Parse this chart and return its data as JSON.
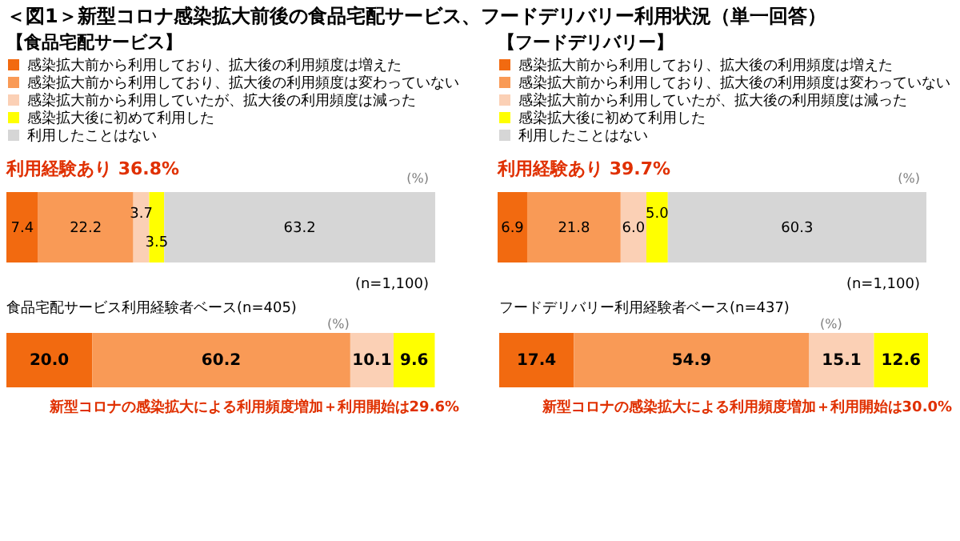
{
  "chart_data": [
    {
      "type": "bar",
      "orientation": "horizontal",
      "stacked": true,
      "title": "＜図1＞新型コロナ感染拡大前後の食品宅配サービス、フードデリバリー利用状況（単一回答）",
      "subtitle": "【食品宅配サービス】",
      "categories": [
        null
      ],
      "xlim": [
        0,
        100
      ],
      "tick_labels": false,
      "legend": "top",
      "series": [
        {
          "name": "感染拡大前から利用しており、拡大後の利用頻度は増えた",
          "color": "#f26a10",
          "values": [
            7.4
          ],
          "value_labels": [
            "7.4"
          ]
        },
        {
          "name": "感染拡大前から利用しており、拡大後の利用頻度は変わっていない",
          "color": "#f99a56",
          "values": [
            22.2
          ],
          "value_labels": [
            "22.2"
          ]
        },
        {
          "name": "感染拡大前から利用していたが、拡大後の利用頻度は減った",
          "color": "#fbd0b5",
          "values": [
            3.7
          ],
          "value_labels": [
            "3.7"
          ]
        },
        {
          "name": "感染拡大後に初めて利用した",
          "color": "#ffff00",
          "values": [
            3.5
          ],
          "value_labels": [
            "3.5"
          ]
        },
        {
          "name": "利用したことはない",
          "color": "#d6d6d6",
          "values": [
            63.2
          ],
          "value_labels": [
            "63.2"
          ]
        }
      ],
      "annotations": [
        "利用経験あり 36.8%",
        "(%)",
        "(n=1,100)"
      ]
    },
    {
      "type": "bar",
      "orientation": "horizontal",
      "stacked": true,
      "title": "【フードデリバリー】",
      "categories": [
        null
      ],
      "xlim": [
        0,
        100
      ],
      "tick_labels": false,
      "legend": "top",
      "series": [
        {
          "name": "感染拡大前から利用しており、拡大後の利用頻度は増えた",
          "color": "#f26a10",
          "values": [
            6.9
          ],
          "value_labels": [
            "6.9"
          ]
        },
        {
          "name": "感染拡大前から利用しており、拡大後の利用頻度は変わっていない",
          "color": "#f99a56",
          "values": [
            21.8
          ],
          "value_labels": [
            "21.8"
          ]
        },
        {
          "name": "感染拡大前から利用していたが、拡大後の利用頻度は減った",
          "color": "#fbd0b5",
          "values": [
            6.0
          ],
          "value_labels": [
            "6.0"
          ]
        },
        {
          "name": "感染拡大後に初めて利用した",
          "color": "#ffff00",
          "values": [
            5.0
          ],
          "value_labels": [
            "5.0"
          ]
        },
        {
          "name": "利用したことはない",
          "color": "#d6d6d6",
          "values": [
            60.3
          ],
          "value_labels": [
            "60.3"
          ]
        }
      ],
      "annotations": [
        "利用経験あり 39.7%",
        "(%)",
        "(n=1,100)"
      ]
    },
    {
      "type": "bar",
      "orientation": "horizontal",
      "stacked": true,
      "title": "食品宅配サービス利用経験者ベース(n=405)",
      "categories": [
        null
      ],
      "xlim": [
        0,
        100
      ],
      "tick_labels": false,
      "series": [
        {
          "color": "#f26a10",
          "values": [
            20.0
          ],
          "value_labels": [
            "20.0"
          ]
        },
        {
          "color": "#f99a56",
          "values": [
            60.2
          ],
          "value_labels": [
            "60.2"
          ]
        },
        {
          "color": "#fbd0b5",
          "values": [
            10.1
          ],
          "value_labels": [
            "10.1"
          ]
        },
        {
          "color": "#ffff00",
          "values": [
            9.6
          ],
          "value_labels": [
            "9.6"
          ]
        }
      ],
      "annotations": [
        "(%)",
        "新型コロナの感染拡大による利用頻度増加＋利用開始は29.6%"
      ]
    },
    {
      "type": "bar",
      "orientation": "horizontal",
      "stacked": true,
      "title": "フードデリバリー利用経験者ベース(n=437)",
      "categories": [
        null
      ],
      "xlim": [
        0,
        100
      ],
      "tick_labels": false,
      "series": [
        {
          "color": "#f26a10",
          "values": [
            17.4
          ],
          "value_labels": [
            "17.4"
          ]
        },
        {
          "color": "#f99a56",
          "values": [
            54.9
          ],
          "value_labels": [
            "54.9"
          ]
        },
        {
          "color": "#fbd0b5",
          "values": [
            15.1
          ],
          "value_labels": [
            "15.1"
          ]
        },
        {
          "color": "#ffff00",
          "values": [
            12.6
          ],
          "value_labels": [
            "12.6"
          ]
        }
      ],
      "annotations": [
        "(%)",
        "新型コロナの感染拡大による利用頻度増加＋利用開始は30.0%"
      ]
    }
  ]
}
